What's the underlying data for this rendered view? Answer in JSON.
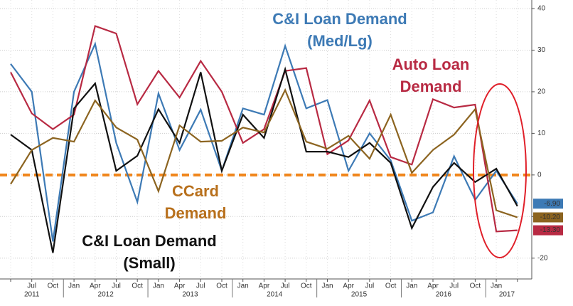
{
  "chart_data": {
    "type": "line",
    "categories": [
      null,
      "Jul",
      "Oct",
      "Jan",
      "Apr",
      "Jul",
      "Oct",
      "Jan",
      "Apr",
      "Jul",
      "Oct",
      "Jan",
      "Apr",
      "Jul",
      "Oct",
      "Jan",
      "Apr",
      "Jul",
      "Oct",
      "Jan",
      "Apr",
      "Jul",
      "Oct",
      "Jan",
      null
    ],
    "years": [
      "2011",
      "2012",
      "2013",
      "2014",
      "2015",
      "2016",
      "2017"
    ],
    "series": [
      {
        "name": "C&I Loan Demand (Med/Lg)",
        "color": "#3d7ab5",
        "values": [
          26.7,
          20,
          -16,
          20,
          31.5,
          7.7,
          -6.5,
          19.6,
          6,
          15.7,
          1,
          16,
          14.5,
          31,
          16,
          18,
          1,
          10,
          3.5,
          -11,
          -9,
          4.5,
          -6,
          1,
          -6.9
        ],
        "value_labels": [
          null,
          null,
          null,
          null,
          null,
          null,
          null,
          null,
          null,
          null,
          null,
          null,
          null,
          null,
          null,
          null,
          null,
          null,
          null,
          null,
          null,
          null,
          null,
          null,
          "-6.90"
        ]
      },
      {
        "name": "Auto Loan Demand",
        "color": "#b82a43",
        "values": [
          24.7,
          14.8,
          11,
          14.5,
          35.8,
          34,
          17,
          25,
          18.6,
          27.4,
          20,
          7.7,
          11,
          25,
          25.7,
          5,
          8.3,
          17.9,
          4.3,
          2.5,
          18.2,
          16.2,
          16.9,
          -13.6,
          -13.3
        ],
        "value_labels": [
          null,
          null,
          null,
          null,
          null,
          null,
          null,
          null,
          null,
          null,
          null,
          null,
          null,
          null,
          null,
          null,
          null,
          null,
          null,
          null,
          null,
          null,
          null,
          null,
          "-13.30"
        ]
      },
      {
        "name": "C&I Loan Demand (Small)",
        "color": "#111111",
        "values": [
          9.7,
          6,
          -18.7,
          16,
          22,
          1,
          4.6,
          15.8,
          7.7,
          24.7,
          1,
          14.5,
          8.9,
          25.4,
          5.6,
          5.6,
          4.3,
          7.7,
          2.9,
          -12.8,
          -2.9,
          2.9,
          -1.7,
          1.5,
          -7.5
        ]
      },
      {
        "name": "CCard Demand",
        "color": "#8c6420",
        "values": [
          -2.2,
          6,
          8.9,
          8,
          17.9,
          11.4,
          8.5,
          -3.9,
          11.9,
          8,
          8.2,
          11.4,
          10.2,
          20.4,
          8,
          6.3,
          9.4,
          3.9,
          14.5,
          0.5,
          6,
          9.7,
          15.8,
          -8.5,
          -10.2
        ],
        "value_labels": [
          null,
          null,
          null,
          null,
          null,
          null,
          null,
          null,
          null,
          null,
          null,
          null,
          null,
          null,
          null,
          null,
          null,
          null,
          null,
          null,
          null,
          null,
          null,
          null,
          "-10.20"
        ]
      }
    ],
    "annotations": [
      {
        "lines": [
          "C&I Loan Demand",
          "(Med/Lg)"
        ],
        "color": "#3d7ab5"
      },
      {
        "lines": [
          "Auto Loan",
          "Demand"
        ],
        "color": "#b82a43"
      },
      {
        "lines": [
          "CCard",
          "Demand"
        ],
        "color": "#b8701c"
      },
      {
        "lines": [
          "C&I Loan Demand",
          "(Small)"
        ],
        "color": "#111111"
      }
    ],
    "reference_line": {
      "value": 0,
      "color": "#f0861d"
    },
    "ylim": [
      -25,
      40
    ],
    "yticks": [
      40,
      30,
      20,
      10,
      0,
      -10,
      -20
    ],
    "grid": true
  }
}
